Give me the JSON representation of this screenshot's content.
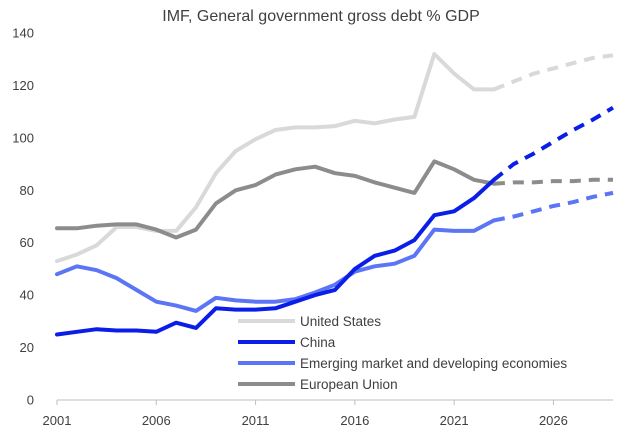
{
  "chart_data": {
    "type": "line",
    "title": "IMF, General government gross debt % GDP",
    "xlabel": "",
    "ylabel": "",
    "xlim": [
      2001,
      2029
    ],
    "ylim": [
      0,
      140
    ],
    "y_ticks": [
      0,
      20,
      40,
      60,
      80,
      100,
      120,
      140
    ],
    "x_ticks": [
      2001,
      2006,
      2011,
      2016,
      2021,
      2026
    ],
    "grid": false,
    "legend_position": "bottom-center",
    "forecast_start": 2023,
    "series": [
      {
        "name": "United States",
        "color": "#d9d9d9",
        "x": [
          2001,
          2002,
          2003,
          2004,
          2005,
          2006,
          2007,
          2008,
          2009,
          2010,
          2011,
          2012,
          2013,
          2014,
          2015,
          2016,
          2017,
          2018,
          2019,
          2020,
          2021,
          2022,
          2023,
          2024,
          2025,
          2026,
          2027,
          2028,
          2029
        ],
        "values": [
          53,
          55.5,
          59,
          66,
          66,
          64.5,
          64.5,
          73.5,
          86.5,
          95,
          99.5,
          103,
          104,
          104,
          104.5,
          106.5,
          105.5,
          107,
          108,
          132,
          124.5,
          118.5,
          118.5,
          121.5,
          124.5,
          126.5,
          128.5,
          130.5,
          131.5
        ]
      },
      {
        "name": "China",
        "color": "#0a1ee8",
        "x": [
          2001,
          2002,
          2003,
          2004,
          2005,
          2006,
          2007,
          2008,
          2009,
          2010,
          2011,
          2012,
          2013,
          2014,
          2015,
          2016,
          2017,
          2018,
          2019,
          2020,
          2021,
          2022,
          2023,
          2024,
          2025,
          2026,
          2027,
          2028,
          2029
        ],
        "values": [
          25,
          26,
          27,
          26.5,
          26.5,
          26,
          29.5,
          27.5,
          35,
          34.5,
          34.5,
          35,
          37.5,
          40,
          42,
          50,
          55,
          57,
          61,
          70.5,
          72,
          77,
          84,
          90,
          94,
          98.5,
          103,
          107,
          111.5
        ]
      },
      {
        "name": "Emerging market and developing economies",
        "color": "#5b75f5",
        "x": [
          2001,
          2002,
          2003,
          2004,
          2005,
          2006,
          2007,
          2008,
          2009,
          2010,
          2011,
          2012,
          2013,
          2014,
          2015,
          2016,
          2017,
          2018,
          2019,
          2020,
          2021,
          2022,
          2023,
          2024,
          2025,
          2026,
          2027,
          2028,
          2029
        ],
        "values": [
          48,
          51,
          49.5,
          46.5,
          42,
          37.5,
          36,
          34,
          39,
          38,
          37.5,
          37.5,
          38.5,
          41,
          44,
          49,
          51,
          52,
          55,
          65,
          64.5,
          64.5,
          68.5,
          70,
          72,
          74,
          75.5,
          77.5,
          79
        ]
      },
      {
        "name": "European Union",
        "color": "#8c8c8c",
        "x": [
          2001,
          2002,
          2003,
          2004,
          2005,
          2006,
          2007,
          2008,
          2009,
          2010,
          2011,
          2012,
          2013,
          2014,
          2015,
          2016,
          2017,
          2018,
          2019,
          2020,
          2021,
          2022,
          2023,
          2024,
          2025,
          2026,
          2027,
          2028,
          2029
        ],
        "values": [
          65.5,
          65.5,
          66.5,
          67,
          67,
          65,
          62,
          65,
          75,
          80,
          82,
          86,
          88,
          89,
          86.5,
          85.5,
          83,
          81,
          79,
          91,
          88,
          84,
          82.5,
          83,
          83,
          83.5,
          83.5,
          84,
          84
        ]
      }
    ]
  }
}
